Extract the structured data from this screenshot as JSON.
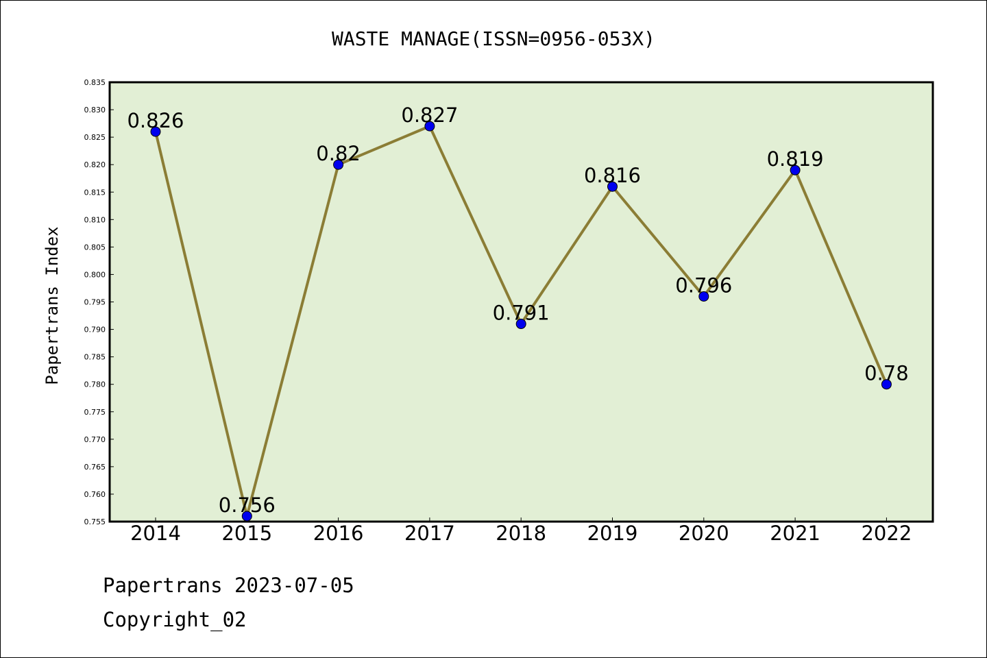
{
  "chart_data": {
    "type": "line",
    "title": "WASTE MANAGE(ISSN=0956-053X)",
    "xlabel": "",
    "ylabel": "Papertrans Index",
    "categories": [
      "2014",
      "2015",
      "2016",
      "2017",
      "2018",
      "2019",
      "2020",
      "2021",
      "2022"
    ],
    "values": [
      0.826,
      0.756,
      0.82,
      0.827,
      0.791,
      0.816,
      0.796,
      0.819,
      0.78
    ],
    "data_labels": [
      "0.826",
      "0.756",
      "0.82",
      "0.827",
      "0.791",
      "0.816",
      "0.796",
      "0.819",
      "0.78"
    ],
    "ylim": [
      0.755,
      0.835
    ],
    "y_ticks": [
      "0.755",
      "0.760",
      "0.765",
      "0.770",
      "0.775",
      "0.780",
      "0.785",
      "0.790",
      "0.795",
      "0.800",
      "0.805",
      "0.810",
      "0.815",
      "0.820",
      "0.825",
      "0.830",
      "0.835"
    ],
    "grid": false,
    "colors": {
      "plot_background": "#e2efd5",
      "line": "#8b7d35",
      "marker": "#0000ee"
    }
  },
  "footer": {
    "line1": "Papertrans 2023-07-05",
    "line2": "Copyright_02"
  }
}
